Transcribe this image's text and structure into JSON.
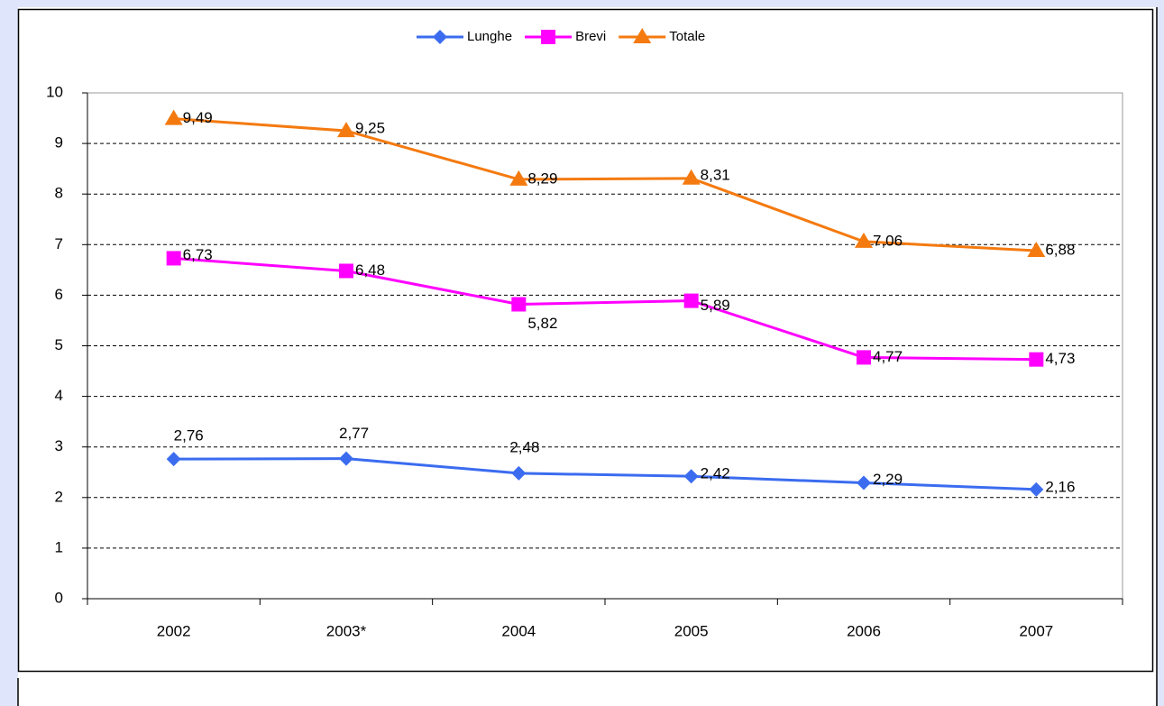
{
  "chart_data": {
    "type": "line",
    "categories": [
      "2002",
      "2003*",
      "2004",
      "2005",
      "2006",
      "2007"
    ],
    "series": [
      {
        "name": "Lunghe",
        "color": "#3b6cf0",
        "marker": "diamond",
        "values": [
          2.76,
          2.77,
          2.48,
          2.42,
          2.29,
          2.16
        ],
        "value_labels": [
          "2,76",
          "2,77",
          "2,48",
          "2,42",
          "2,29",
          "2,16"
        ]
      },
      {
        "name": "Brevi",
        "color": "#ff00ff",
        "marker": "square",
        "values": [
          6.73,
          6.48,
          5.82,
          5.89,
          4.77,
          4.73
        ],
        "value_labels": [
          "6,73",
          "6,48",
          "5,82",
          "5,89",
          "4,77",
          "4,73"
        ]
      },
      {
        "name": "Totale",
        "color": "#f47a10",
        "marker": "triangle",
        "values": [
          9.49,
          9.25,
          8.29,
          8.31,
          7.06,
          6.88
        ],
        "value_labels": [
          "9,49",
          "9,25",
          "8,29",
          "8,31",
          "7,06",
          "6,88"
        ]
      }
    ],
    "ylim": [
      0,
      10
    ],
    "yticks": [
      0,
      1,
      2,
      3,
      4,
      5,
      6,
      7,
      8,
      9,
      10
    ],
    "grid": true,
    "legend": "top"
  }
}
